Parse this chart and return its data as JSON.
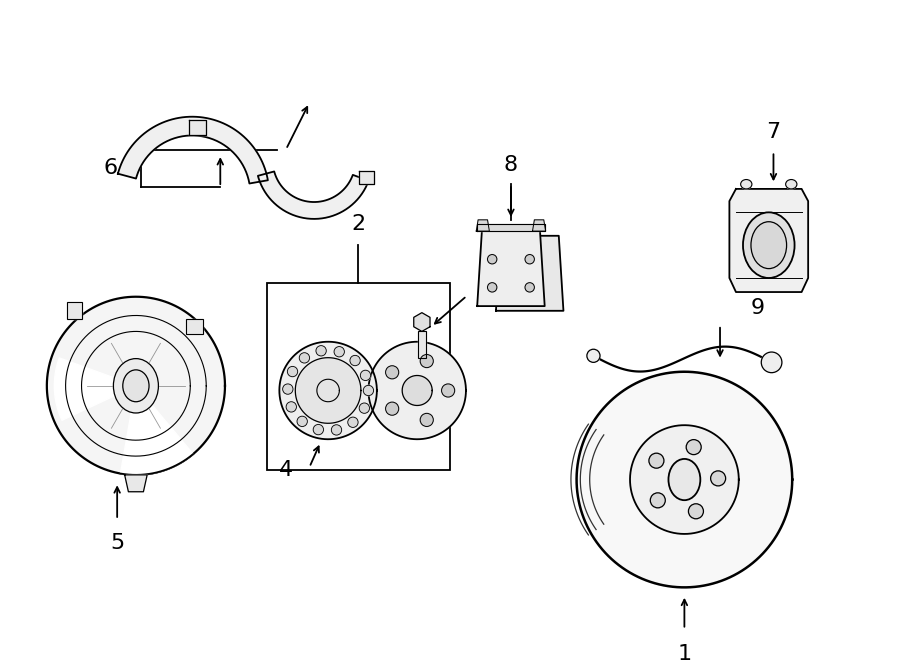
{
  "bg_color": "#ffffff",
  "line_color": "#000000",
  "lw": 1.3,
  "fig_width": 9.0,
  "fig_height": 6.61,
  "label_fontsize": 14,
  "label_fontsize_large": 16
}
